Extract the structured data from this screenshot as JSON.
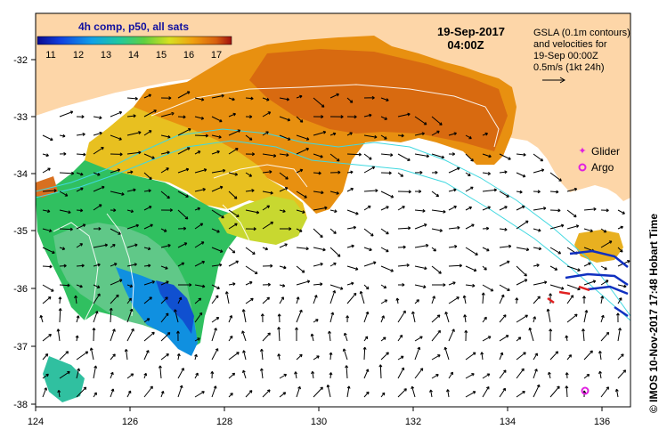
{
  "map": {
    "colorbar": {
      "title": "4h comp, p50, all sats",
      "ticks": [
        "11",
        "12",
        "13",
        "14",
        "15",
        "16",
        "17"
      ],
      "min": 10.5,
      "max": 17.5
    },
    "date_line1": "19-Sep-2017",
    "date_line2": "04:00Z",
    "info_lines": [
      "GSLA (0.1m contours)",
      "and velocities for",
      "19-Sep 00:00Z",
      "0.5m/s (1kt 24h)"
    ],
    "legend": {
      "glider_label": "Glider",
      "argo_label": "Argo",
      "glider_color": "#e020e0",
      "argo_color": "#e020e0"
    },
    "copyright": "© IMOS 10-Nov-2017 17:48 Hobart Time",
    "x_ticks": [
      "124",
      "126",
      "128",
      "130",
      "132",
      "134",
      "136"
    ],
    "y_ticks": [
      "-32",
      "-33",
      "-34",
      "-35",
      "-36",
      "-37",
      "-38"
    ],
    "colors": {
      "land": "#fdd6a8",
      "contour": "#ffffff",
      "bathymetry": "#40d8e0",
      "arrow": "#000000"
    }
  }
}
